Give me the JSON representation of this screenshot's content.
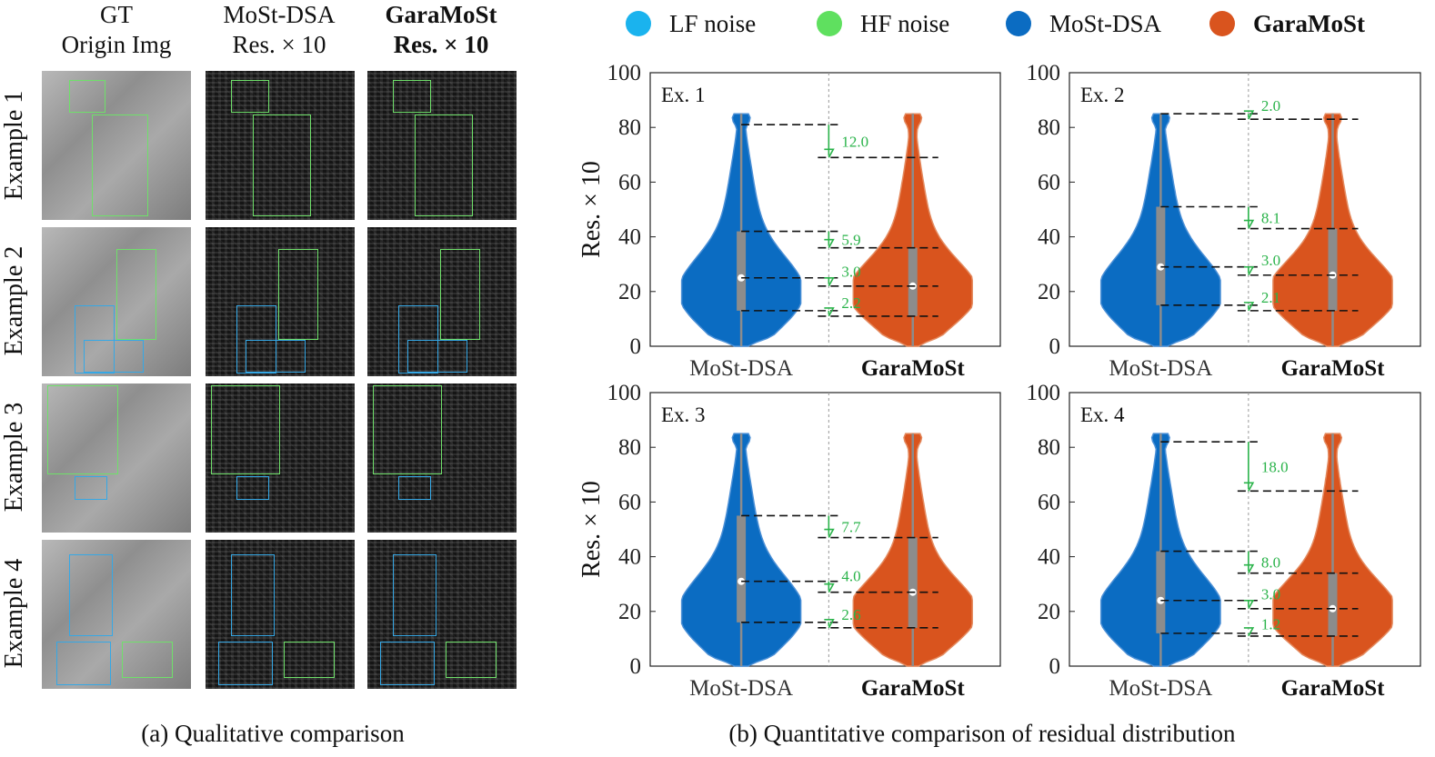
{
  "panel_a": {
    "columns": [
      {
        "line1": "GT",
        "line2": "Origin Img",
        "bold": false
      },
      {
        "line1": "MoSt-DSA",
        "line2": "Res. × 10",
        "bold": false
      },
      {
        "line1": "GaraMoSt",
        "line2": "Res. × 10",
        "bold": true
      }
    ],
    "rows": [
      "Example 1",
      "Example 2",
      "Example 3",
      "Example 4"
    ],
    "caption": "(a) Qualitative comparison"
  },
  "panel_b": {
    "caption": "(b) Quantitative comparison of residual distribution",
    "legend": [
      {
        "label": "LF noise",
        "color": "#1ab3ee",
        "bold": false
      },
      {
        "label": "HF noise",
        "color": "#5fe05f",
        "bold": false
      },
      {
        "label": "MoSt-DSA",
        "color": "#0b6cc2",
        "bold": false
      },
      {
        "label": "GaraMoSt",
        "color": "#d9541e",
        "bold": true
      }
    ],
    "colors": {
      "most": "#0b6cc2",
      "gara": "#d9541e",
      "annot": "#2ab34a",
      "box": "#8c8c8c"
    }
  },
  "chart_data": [
    {
      "type": "violin",
      "label": "Ex. 1",
      "ylabel": "Res. × 10",
      "ylim": [
        0,
        100
      ],
      "yticks": [
        "0",
        "20",
        "40",
        "60",
        "80",
        "100"
      ],
      "categories": [
        "MoSt-DSA",
        "GaraMoSt"
      ],
      "series": [
        {
          "name": "MoSt-DSA",
          "max": 85,
          "whisker_top": 81,
          "q3": 42,
          "median": 25,
          "q1": 13
        },
        {
          "name": "GaraMoSt",
          "max": 85,
          "whisker_top": 69,
          "q3": 36,
          "median": 22,
          "q1": 11
        }
      ],
      "annotations": [
        "12.0",
        "5.9",
        "3.0",
        "2.2"
      ]
    },
    {
      "type": "violin",
      "label": "Ex. 2",
      "ylabel": "",
      "ylim": [
        0,
        100
      ],
      "yticks": [
        "0",
        "20",
        "40",
        "60",
        "80",
        "100"
      ],
      "categories": [
        "MoSt-DSA",
        "GaraMoSt"
      ],
      "series": [
        {
          "name": "MoSt-DSA",
          "max": 85,
          "whisker_top": 85,
          "q3": 51,
          "median": 29,
          "q1": 15
        },
        {
          "name": "GaraMoSt",
          "max": 85,
          "whisker_top": 83,
          "q3": 43,
          "median": 26,
          "q1": 13
        }
      ],
      "annotations": [
        "2.0",
        "8.1",
        "3.0",
        "2.1"
      ]
    },
    {
      "type": "violin",
      "label": "Ex. 3",
      "ylabel": "Res. × 10",
      "ylim": [
        0,
        100
      ],
      "yticks": [
        "0",
        "20",
        "40",
        "60",
        "80",
        "100"
      ],
      "categories": [
        "MoSt-DSA",
        "GaraMoSt"
      ],
      "series": [
        {
          "name": "MoSt-DSA",
          "max": 85,
          "whisker_top": 85,
          "q3": 55,
          "median": 31,
          "q1": 16
        },
        {
          "name": "GaraMoSt",
          "max": 85,
          "whisker_top": 85,
          "q3": 47,
          "median": 27,
          "q1": 14
        }
      ],
      "annotations": [
        "7.7",
        "4.0",
        "2.6"
      ]
    },
    {
      "type": "violin",
      "label": "Ex. 4",
      "ylabel": "",
      "ylim": [
        0,
        100
      ],
      "yticks": [
        "0",
        "20",
        "40",
        "60",
        "80",
        "100"
      ],
      "categories": [
        "MoSt-DSA",
        "GaraMoSt"
      ],
      "series": [
        {
          "name": "MoSt-DSA",
          "max": 85,
          "whisker_top": 82,
          "q3": 42,
          "median": 24,
          "q1": 12
        },
        {
          "name": "GaraMoSt",
          "max": 85,
          "whisker_top": 64,
          "q3": 34,
          "median": 21,
          "q1": 11
        }
      ],
      "annotations": [
        "18.0",
        "8.0",
        "3.0",
        "1.2"
      ]
    }
  ]
}
